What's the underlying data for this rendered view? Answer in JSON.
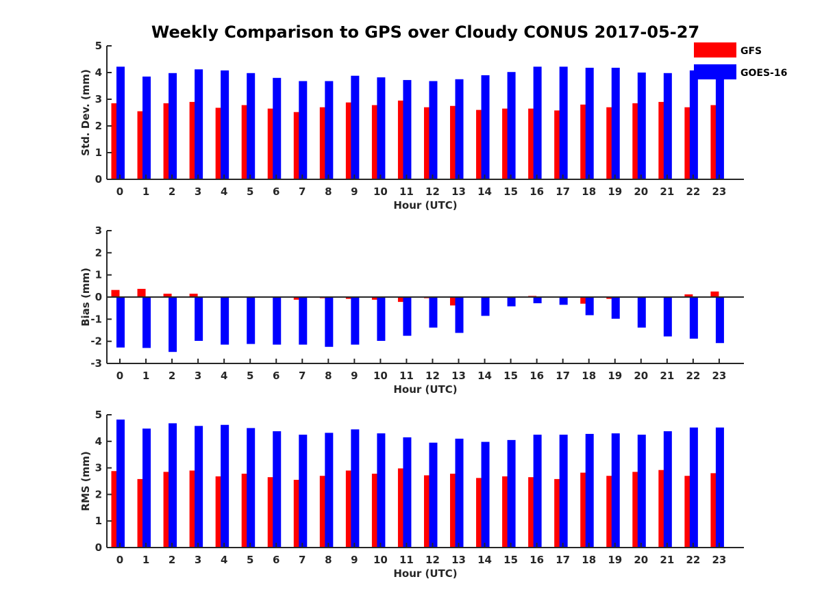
{
  "figure_title": "Weekly Comparison to GPS over Cloudy CONUS 2017-05-27",
  "colors": {
    "GFS": "#ff0000",
    "GOES-16": "#0000ff"
  },
  "legend": {
    "items": [
      "GFS",
      "GOES-16"
    ],
    "placement": "top-right"
  },
  "chart_data": [
    {
      "type": "bar",
      "title": "Weekly Comparison to GPS over Cloudy CONUS 2017-05-27",
      "xlabel": "Hour (UTC)",
      "ylabel": "Std. Dev. (mm)",
      "ylim": [
        0,
        5
      ],
      "yticks": [
        0,
        1,
        2,
        3,
        4,
        5
      ],
      "categories": [
        "0",
        "1",
        "2",
        "3",
        "4",
        "5",
        "6",
        "7",
        "8",
        "9",
        "10",
        "11",
        "12",
        "13",
        "14",
        "15",
        "16",
        "17",
        "18",
        "19",
        "20",
        "21",
        "22",
        "23"
      ],
      "series": [
        {
          "name": "GFS",
          "values": [
            2.85,
            2.55,
            2.85,
            2.9,
            2.68,
            2.78,
            2.65,
            2.52,
            2.7,
            2.88,
            2.78,
            2.95,
            2.7,
            2.75,
            2.6,
            2.65,
            2.65,
            2.58,
            2.8,
            2.7,
            2.85,
            2.9,
            2.7,
            2.78
          ]
        },
        {
          "name": "GOES-16",
          "values": [
            4.22,
            3.85,
            3.98,
            4.12,
            4.08,
            3.98,
            3.8,
            3.68,
            3.68,
            3.88,
            3.82,
            3.72,
            3.68,
            3.75,
            3.9,
            4.02,
            4.22,
            4.22,
            4.18,
            4.18,
            4.0,
            3.98,
            4.08,
            4.02
          ]
        }
      ]
    },
    {
      "type": "bar",
      "xlabel": "Hour (UTC)",
      "ylabel": "Bias (mm)",
      "ylim": [
        -3,
        3
      ],
      "yticks": [
        -3,
        -2,
        -1,
        0,
        1,
        2,
        3
      ],
      "categories": [
        "0",
        "1",
        "2",
        "3",
        "4",
        "5",
        "6",
        "7",
        "8",
        "9",
        "10",
        "11",
        "12",
        "13",
        "14",
        "15",
        "16",
        "17",
        "18",
        "19",
        "20",
        "21",
        "22",
        "23"
      ],
      "series": [
        {
          "name": "GFS",
          "values": [
            0.32,
            0.37,
            0.15,
            0.15,
            0.02,
            -0.02,
            0.02,
            -0.12,
            -0.05,
            -0.08,
            -0.12,
            -0.22,
            -0.05,
            -0.38,
            0.0,
            -0.02,
            0.05,
            0.02,
            -0.3,
            -0.08,
            0.0,
            -0.02,
            0.12,
            0.25
          ]
        },
        {
          "name": "GOES-16",
          "values": [
            -2.28,
            -2.3,
            -2.48,
            -1.98,
            -2.15,
            -2.12,
            -2.15,
            -2.15,
            -2.25,
            -2.15,
            -1.98,
            -1.75,
            -1.38,
            -1.62,
            -0.85,
            -0.42,
            -0.28,
            -0.35,
            -0.82,
            -0.98,
            -1.38,
            -1.78,
            -1.88,
            -2.08
          ]
        }
      ]
    },
    {
      "type": "bar",
      "xlabel": "Hour (UTC)",
      "ylabel": "RMS (mm)",
      "ylim": [
        0,
        5
      ],
      "yticks": [
        0,
        1,
        2,
        3,
        4,
        5
      ],
      "categories": [
        "0",
        "1",
        "2",
        "3",
        "4",
        "5",
        "6",
        "7",
        "8",
        "9",
        "10",
        "11",
        "12",
        "13",
        "14",
        "15",
        "16",
        "17",
        "18",
        "19",
        "20",
        "21",
        "22",
        "23"
      ],
      "series": [
        {
          "name": "GFS",
          "values": [
            2.88,
            2.58,
            2.85,
            2.9,
            2.68,
            2.78,
            2.65,
            2.55,
            2.7,
            2.9,
            2.78,
            2.98,
            2.72,
            2.78,
            2.62,
            2.68,
            2.65,
            2.58,
            2.82,
            2.7,
            2.85,
            2.92,
            2.7,
            2.8
          ]
        },
        {
          "name": "GOES-16",
          "values": [
            4.82,
            4.48,
            4.68,
            4.58,
            4.62,
            4.5,
            4.38,
            4.25,
            4.32,
            4.45,
            4.3,
            4.15,
            3.95,
            4.1,
            3.98,
            4.05,
            4.25,
            4.25,
            4.28,
            4.3,
            4.25,
            4.38,
            4.52,
            4.52
          ]
        }
      ]
    }
  ]
}
